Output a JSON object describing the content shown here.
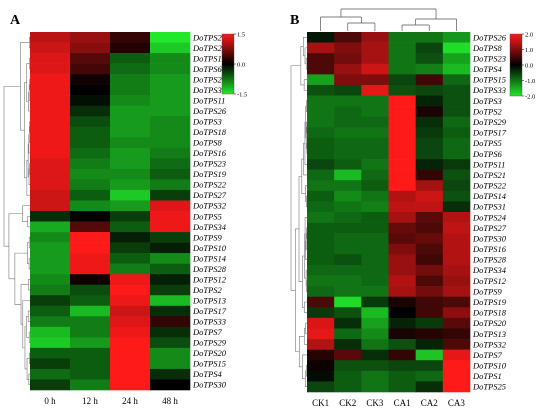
{
  "chart_data": [
    {
      "panel": "A",
      "type": "heatmap",
      "columns": [
        "0 h",
        "12 h",
        "24 h",
        "48 h"
      ],
      "rows": [
        "DoTPS21",
        "DoTPS24",
        "DoTPS1",
        "DoTPS6",
        "DoTPS25",
        "DoTPS31",
        "DoTPS11",
        "DoTPS26",
        "DoTPS3",
        "DoTPS18",
        "DoTPS8",
        "DoTPS16",
        "DoTPS23",
        "DoTPS19",
        "DoTPS22",
        "DoTPS27",
        "DoTPS32",
        "DoTPS5",
        "DoTPS34",
        "DoTPS9",
        "DoTPS10",
        "DoTPS14",
        "DoTPS28",
        "DoTPS12",
        "DoTPS2",
        "DoTPS13",
        "DoTPS17",
        "DoTPS33",
        "DoTPS7",
        "DoTPS29",
        "DoTPS20",
        "DoTPS15",
        "DoTPS4",
        "DoTPS30"
      ],
      "values": [
        [
          1.1,
          0.9,
          0.3,
          -1.5
        ],
        [
          1.2,
          0.8,
          0.2,
          -1.3
        ],
        [
          1.3,
          0.5,
          -0.6,
          -0.9
        ],
        [
          1.3,
          0.4,
          -0.7,
          -0.9
        ],
        [
          1.4,
          0.1,
          -0.8,
          -1.0
        ],
        [
          1.4,
          0.0,
          -0.8,
          -1.0
        ],
        [
          1.4,
          -0.1,
          -0.9,
          -1.0
        ],
        [
          1.4,
          -0.3,
          -1.0,
          -1.0
        ],
        [
          1.4,
          -0.5,
          -1.0,
          -0.9
        ],
        [
          1.4,
          -0.6,
          -1.0,
          -0.9
        ],
        [
          1.4,
          -0.6,
          -0.9,
          -0.9
        ],
        [
          1.4,
          -0.7,
          -1.0,
          -0.8
        ],
        [
          1.3,
          -0.8,
          -1.0,
          -0.7
        ],
        [
          1.3,
          -0.9,
          -0.9,
          -0.6
        ],
        [
          1.3,
          -0.8,
          -1.0,
          -0.8
        ],
        [
          1.2,
          -0.6,
          -1.3,
          -0.4
        ],
        [
          1.2,
          -0.9,
          -1.0,
          1.3
        ],
        [
          -0.3,
          0.0,
          -0.4,
          1.4
        ],
        [
          -1.1,
          0.5,
          -0.6,
          1.4
        ],
        [
          -0.9,
          1.5,
          -0.2,
          -0.4
        ],
        [
          -1.0,
          1.5,
          -0.4,
          -0.2
        ],
        [
          -1.0,
          1.4,
          -0.6,
          -0.9
        ],
        [
          -1.0,
          1.4,
          -0.8,
          -0.6
        ],
        [
          -0.9,
          0.1,
          1.4,
          -0.2
        ],
        [
          -0.8,
          -0.5,
          1.5,
          -0.4
        ],
        [
          -0.4,
          -0.6,
          1.4,
          -1.2
        ],
        [
          -0.6,
          -1.2,
          1.2,
          -0.3
        ],
        [
          -0.8,
          -0.8,
          1.3,
          0.3
        ],
        [
          -1.2,
          -0.8,
          1.4,
          -0.3
        ],
        [
          -1.3,
          -1.0,
          1.5,
          -0.5
        ],
        [
          -0.6,
          -0.6,
          1.5,
          -0.9
        ],
        [
          -0.4,
          -0.6,
          1.5,
          -0.9
        ],
        [
          -0.7,
          -0.6,
          1.5,
          -0.3
        ],
        [
          -0.4,
          -0.8,
          1.5,
          0.0
        ]
      ],
      "colorbar": {
        "min": -1.5,
        "max": 1.5,
        "ticks": [
          1.5,
          0.0,
          -1.5
        ]
      },
      "colors": {
        "low": "#21e82a",
        "mid": "#000000",
        "high": "#ff1a1a"
      }
    },
    {
      "panel": "B",
      "type": "heatmap",
      "columns": [
        "CK1",
        "CK2",
        "CK3",
        "CA1",
        "CA2",
        "CA3"
      ],
      "rows": [
        "DoTPS26",
        "DoTPS8",
        "DoTPS23",
        "DoTPS4",
        "DoTPS15",
        "DoTPS33",
        "DoTPS3",
        "DoTPS2",
        "DoTPS29",
        "DoTPS17",
        "DoTPS5",
        "DoTPS6",
        "DoTPS11",
        "DoTPS21",
        "DoTPS22",
        "DoTPS14",
        "DoTPS31",
        "DoTPS24",
        "DoTPS27",
        "DoTPS30",
        "DoTPS16",
        "DoTPS28",
        "DoTPS34",
        "DoTPS12",
        "DoTPS9",
        "DoTPS19",
        "DoTPS18",
        "DoTPS20",
        "DoTPS13",
        "DoTPS32",
        "DoTPS7",
        "DoTPS10",
        "DoTPS1",
        "DoTPS25"
      ],
      "values": [
        [
          -0.2,
          0.6,
          1.2,
          -1.0,
          -1.0,
          -1.3
        ],
        [
          1.3,
          1.0,
          1.3,
          -1.0,
          -0.6,
          -1.9
        ],
        [
          0.6,
          0.9,
          1.3,
          -1.0,
          -0.7,
          -1.4
        ],
        [
          0.6,
          1.2,
          1.6,
          -1.0,
          -1.1,
          -1.6
        ],
        [
          -1.4,
          1.0,
          1.0,
          -0.6,
          0.5,
          -0.9
        ],
        [
          -0.7,
          -0.6,
          1.8,
          -0.7,
          -0.6,
          -0.7
        ],
        [
          -1.0,
          -1.0,
          -1.0,
          2.0,
          -0.3,
          -0.7
        ],
        [
          -1.0,
          -0.9,
          -1.0,
          2.0,
          0.2,
          -0.7
        ],
        [
          -1.0,
          -0.9,
          -0.9,
          2.0,
          -0.4,
          -0.9
        ],
        [
          -0.9,
          -1.0,
          -1.0,
          2.0,
          -0.5,
          -0.8
        ],
        [
          -0.8,
          -0.9,
          -0.9,
          2.0,
          -0.6,
          -0.9
        ],
        [
          -0.8,
          -0.9,
          -0.9,
          2.0,
          -0.6,
          -0.9
        ],
        [
          -0.6,
          -0.8,
          -1.0,
          2.0,
          -0.3,
          -0.5
        ],
        [
          -0.9,
          -1.6,
          -0.9,
          2.0,
          0.4,
          -0.7
        ],
        [
          -1.0,
          -1.0,
          -0.8,
          2.0,
          1.3,
          -0.6
        ],
        [
          -0.8,
          -1.2,
          -1.0,
          1.4,
          1.6,
          -0.7
        ],
        [
          -0.9,
          -1.0,
          -1.1,
          1.5,
          1.5,
          -0.4
        ],
        [
          -1.0,
          -0.9,
          -0.8,
          1.3,
          0.7,
          1.4
        ],
        [
          -0.8,
          -0.8,
          -0.8,
          0.8,
          0.6,
          1.5
        ],
        [
          -0.8,
          -0.9,
          -0.9,
          0.7,
          0.8,
          1.4
        ],
        [
          -0.8,
          -0.9,
          -0.9,
          1.0,
          0.6,
          1.4
        ],
        [
          -0.8,
          -0.7,
          -0.9,
          1.2,
          0.5,
          1.4
        ],
        [
          -0.9,
          -0.9,
          -0.9,
          1.2,
          0.9,
          1.3
        ],
        [
          -1.0,
          -1.0,
          -0.9,
          1.4,
          0.6,
          1.2
        ],
        [
          -0.9,
          -1.0,
          -1.0,
          1.3,
          0.9,
          1.3
        ],
        [
          0.6,
          -1.9,
          -0.5,
          0.2,
          0.5,
          0.6
        ],
        [
          -0.5,
          -0.7,
          -1.6,
          0.0,
          0.5,
          1.1
        ],
        [
          1.7,
          -0.4,
          -1.4,
          -0.3,
          -0.5,
          0.7
        ],
        [
          1.8,
          -0.9,
          -1.2,
          0.2,
          0.3,
          0.4
        ],
        [
          1.4,
          -0.4,
          -1.0,
          -0.7,
          -0.3,
          0.6
        ],
        [
          0.3,
          0.7,
          -0.4,
          0.4,
          -1.7,
          1.8
        ],
        [
          0.1,
          -0.7,
          -0.7,
          -0.6,
          -0.6,
          2.0
        ],
        [
          -0.1,
          -0.8,
          -1.0,
          -0.8,
          -0.9,
          2.0
        ],
        [
          -0.6,
          -0.8,
          -1.0,
          -0.8,
          -0.4,
          2.0
        ]
      ],
      "colorbar": {
        "min": -2.0,
        "max": 2.0,
        "ticks": [
          2.0,
          1.0,
          0.0,
          -1.0,
          -2.0
        ]
      },
      "colors": {
        "low": "#21e82a",
        "mid": "#000000",
        "high": "#ff1a1a"
      }
    }
  ],
  "panels": {
    "a_label": "A",
    "b_label": "B"
  },
  "colorbar_a_labels": [
    "1.5",
    "0.0",
    "-1.5"
  ],
  "colorbar_b_labels": [
    "2.0",
    "1.0",
    "0.0",
    "-1.0",
    "-2.0"
  ]
}
